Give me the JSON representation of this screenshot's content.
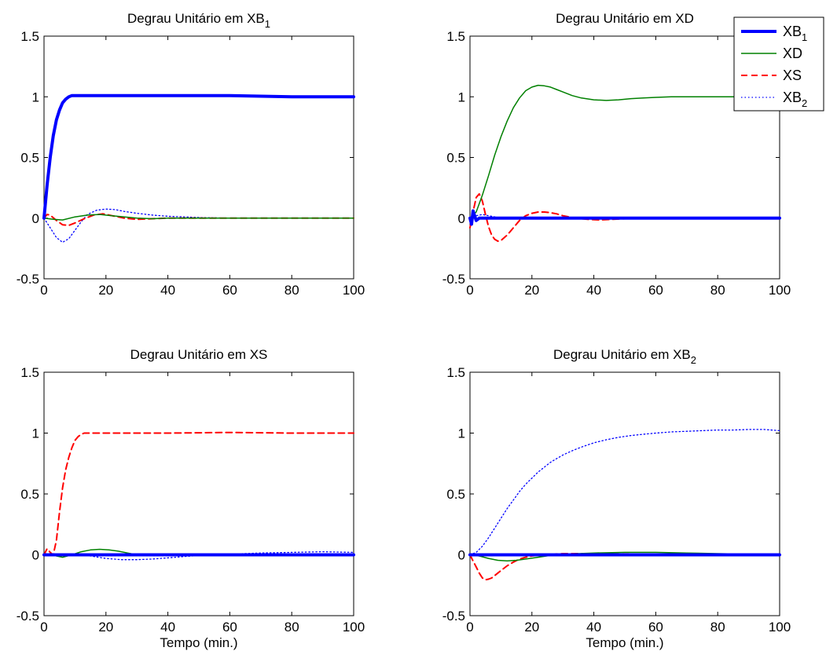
{
  "chart_data": [
    {
      "type": "line",
      "title": "Degrau Unitário em XB",
      "title_sub": "1",
      "xlabel": "",
      "xlim": [
        0,
        100
      ],
      "ylim": [
        -0.5,
        1.5
      ],
      "xticks": [
        "0",
        "20",
        "40",
        "60",
        "80",
        "100"
      ],
      "yticks": [
        "-0.5",
        "0",
        "0.5",
        "1",
        "1.5"
      ],
      "series": [
        {
          "key": "XB1",
          "x": [
            0,
            1,
            2,
            3,
            4,
            5,
            6,
            7,
            8,
            9,
            10,
            12,
            15,
            20,
            30,
            40,
            60,
            80,
            100
          ],
          "y": [
            0,
            0.27,
            0.5,
            0.68,
            0.81,
            0.89,
            0.95,
            0.98,
            1.0,
            1.01,
            1.01,
            1.01,
            1.01,
            1.01,
            1.01,
            1.01,
            1.01,
            1.0,
            1.0
          ]
        },
        {
          "key": "XD",
          "x": [
            0,
            3,
            6,
            10,
            14,
            18,
            22,
            26,
            30,
            35,
            40,
            50,
            100
          ],
          "y": [
            0,
            -0.01,
            -0.015,
            0.01,
            0.025,
            0.03,
            0.02,
            0.01,
            0.0,
            -0.005,
            0.0,
            0.0,
            0.0
          ]
        },
        {
          "key": "XS",
          "x": [
            0,
            1,
            2,
            4,
            6,
            8,
            10,
            13,
            16,
            19,
            22,
            26,
            30,
            35,
            40,
            50,
            100
          ],
          "y": [
            0,
            0.03,
            0.025,
            -0.02,
            -0.055,
            -0.06,
            -0.04,
            -0.005,
            0.025,
            0.035,
            0.02,
            0.0,
            -0.01,
            -0.005,
            0.0,
            0.0,
            0.0
          ]
        },
        {
          "key": "XB2",
          "x": [
            0,
            2,
            4,
            6,
            8,
            10,
            12,
            14,
            17,
            20,
            23,
            26,
            30,
            35,
            40,
            50,
            60,
            80,
            100
          ],
          "y": [
            0,
            -0.08,
            -0.16,
            -0.2,
            -0.17,
            -0.1,
            -0.03,
            0.03,
            0.065,
            0.075,
            0.07,
            0.055,
            0.04,
            0.025,
            0.015,
            0.005,
            0.0,
            0.0,
            0.0
          ]
        }
      ]
    },
    {
      "type": "line",
      "title": "Degrau Unitário em XD",
      "title_sub": "",
      "xlabel": "",
      "xlim": [
        0,
        100
      ],
      "ylim": [
        -0.5,
        1.5
      ],
      "xticks": [
        "0",
        "20",
        "40",
        "60",
        "80",
        "100"
      ],
      "yticks": [
        "-0.5",
        "0",
        "0.5",
        "1",
        "1.5"
      ],
      "series": [
        {
          "key": "XB1",
          "x": [
            0,
            0.5,
            1,
            2,
            3,
            100
          ],
          "y": [
            0,
            -0.05,
            0.06,
            -0.02,
            0.0,
            0.0
          ]
        },
        {
          "key": "XD",
          "x": [
            0,
            2,
            4,
            6,
            8,
            10,
            12,
            14,
            16,
            18,
            20,
            22,
            24,
            26,
            28,
            30,
            33,
            36,
            40,
            44,
            48,
            52,
            56,
            60,
            65,
            70,
            80,
            100
          ],
          "y": [
            0,
            0.05,
            0.19,
            0.35,
            0.52,
            0.67,
            0.8,
            0.91,
            0.99,
            1.05,
            1.08,
            1.095,
            1.09,
            1.08,
            1.06,
            1.04,
            1.01,
            0.99,
            0.975,
            0.97,
            0.975,
            0.985,
            0.99,
            0.995,
            1.0,
            1.0,
            1.0,
            1.0
          ]
        },
        {
          "key": "XS",
          "x": [
            0,
            1,
            2,
            3,
            4,
            5,
            6,
            7,
            8,
            9,
            10,
            12,
            14,
            16,
            18,
            20,
            22,
            24,
            26,
            28,
            30,
            34,
            38,
            42,
            46,
            50,
            60,
            100
          ],
          "y": [
            -0.08,
            0.05,
            0.17,
            0.2,
            0.14,
            0.03,
            -0.07,
            -0.14,
            -0.175,
            -0.19,
            -0.185,
            -0.14,
            -0.08,
            -0.02,
            0.02,
            0.04,
            0.05,
            0.05,
            0.045,
            0.035,
            0.02,
            0.0,
            -0.01,
            -0.015,
            -0.01,
            -0.005,
            0.0,
            0.0
          ]
        },
        {
          "key": "XB2",
          "x": [
            0,
            2,
            4,
            6,
            8,
            10,
            15,
            100
          ],
          "y": [
            0,
            0.02,
            0.03,
            0.02,
            0.01,
            0.0,
            0.0,
            0.0
          ]
        }
      ]
    },
    {
      "type": "line",
      "title": "Degrau Unitário em XS",
      "title_sub": "",
      "xlabel": "Tempo (min.)",
      "xlim": [
        0,
        100
      ],
      "ylim": [
        -0.5,
        1.5
      ],
      "xticks": [
        "0",
        "20",
        "40",
        "60",
        "80",
        "100"
      ],
      "yticks": [
        "-0.5",
        "0",
        "0.5",
        "1",
        "1.5"
      ],
      "series": [
        {
          "key": "XB1",
          "x": [
            0,
            100
          ],
          "y": [
            0.0,
            0.0
          ]
        },
        {
          "key": "XD",
          "x": [
            0,
            2,
            4,
            6,
            9,
            12,
            15,
            18,
            21,
            24,
            27,
            30,
            35,
            40,
            50,
            60,
            100
          ],
          "y": [
            0,
            0.01,
            -0.01,
            -0.02,
            0.0,
            0.025,
            0.04,
            0.045,
            0.04,
            0.03,
            0.015,
            0.0,
            -0.005,
            -0.005,
            0.0,
            0.0,
            0.0
          ]
        },
        {
          "key": "XS",
          "x": [
            0,
            1,
            2,
            3,
            4,
            5,
            6,
            7,
            8,
            9,
            10,
            11,
            12,
            13,
            14,
            15,
            20,
            30,
            40,
            60,
            80,
            100
          ],
          "y": [
            0,
            0.05,
            0.02,
            0.0,
            0.12,
            0.35,
            0.55,
            0.7,
            0.8,
            0.88,
            0.94,
            0.97,
            0.99,
            1.0,
            1.0,
            1.0,
            1.0,
            1.0,
            1.0,
            1.005,
            1.0,
            1.0
          ]
        },
        {
          "key": "XB2",
          "x": [
            0,
            5,
            10,
            15,
            20,
            25,
            30,
            35,
            40,
            45,
            50,
            55,
            60,
            70,
            80,
            90,
            100
          ],
          "y": [
            0,
            0.0,
            0.0,
            -0.01,
            -0.03,
            -0.04,
            -0.04,
            -0.035,
            -0.025,
            -0.015,
            -0.005,
            0.0,
            0.005,
            0.015,
            0.02,
            0.025,
            0.02
          ]
        }
      ]
    },
    {
      "type": "line",
      "title": "Degrau Unitário em XB",
      "title_sub": "2",
      "xlabel": "Tempo (min.)",
      "xlim": [
        0,
        100
      ],
      "ylim": [
        -0.5,
        1.5
      ],
      "xticks": [
        "0",
        "20",
        "40",
        "60",
        "80",
        "100"
      ],
      "yticks": [
        "-0.5",
        "0",
        "0.5",
        "1",
        "1.5"
      ],
      "series": [
        {
          "key": "XB1",
          "x": [
            0,
            100
          ],
          "y": [
            0.0,
            0.0
          ]
        },
        {
          "key": "XD",
          "x": [
            0,
            3,
            6,
            9,
            12,
            15,
            18,
            22,
            26,
            30,
            35,
            40,
            50,
            60,
            70,
            80,
            90,
            100
          ],
          "y": [
            0,
            -0.01,
            -0.03,
            -0.045,
            -0.05,
            -0.045,
            -0.035,
            -0.02,
            -0.005,
            0.005,
            0.01,
            0.015,
            0.02,
            0.02,
            0.015,
            0.01,
            0.005,
            0.0
          ]
        },
        {
          "key": "XS",
          "x": [
            0,
            1,
            2,
            3,
            4,
            5,
            6,
            7,
            8,
            10,
            12,
            14,
            16,
            18,
            20,
            23,
            26,
            30,
            35,
            40,
            60,
            100
          ],
          "y": [
            0,
            -0.05,
            -0.1,
            -0.15,
            -0.19,
            -0.205,
            -0.2,
            -0.19,
            -0.17,
            -0.13,
            -0.09,
            -0.06,
            -0.035,
            -0.02,
            -0.01,
            0.0,
            0.005,
            0.01,
            0.01,
            0.01,
            0.005,
            0.0
          ]
        },
        {
          "key": "XB2",
          "x": [
            0,
            2,
            4,
            6,
            8,
            10,
            12,
            14,
            16,
            18,
            20,
            22,
            24,
            26,
            28,
            30,
            33,
            36,
            40,
            44,
            48,
            52,
            56,
            60,
            65,
            70,
            75,
            80,
            85,
            90,
            95,
            100
          ],
          "y": [
            0,
            0.02,
            0.07,
            0.14,
            0.22,
            0.3,
            0.38,
            0.45,
            0.52,
            0.58,
            0.63,
            0.68,
            0.72,
            0.76,
            0.79,
            0.82,
            0.855,
            0.885,
            0.92,
            0.945,
            0.965,
            0.98,
            0.99,
            1.0,
            1.01,
            1.015,
            1.02,
            1.025,
            1.025,
            1.03,
            1.03,
            1.02
          ]
        }
      ]
    }
  ],
  "legend": {
    "placement": "top-right",
    "entries": [
      {
        "key": "XB1",
        "label": "XB",
        "sub": "1",
        "color": "#0000ff",
        "width": 4,
        "dash": ""
      },
      {
        "key": "XD",
        "label": "XD",
        "sub": "",
        "color": "#008000",
        "width": 1.5,
        "dash": ""
      },
      {
        "key": "XS",
        "label": "XS",
        "sub": "",
        "color": "#ff0000",
        "width": 2,
        "dash": "8,5"
      },
      {
        "key": "XB2",
        "label": "XB",
        "sub": "2",
        "color": "#0000ff",
        "width": 1.3,
        "dash": "1.5,3"
      }
    ]
  }
}
